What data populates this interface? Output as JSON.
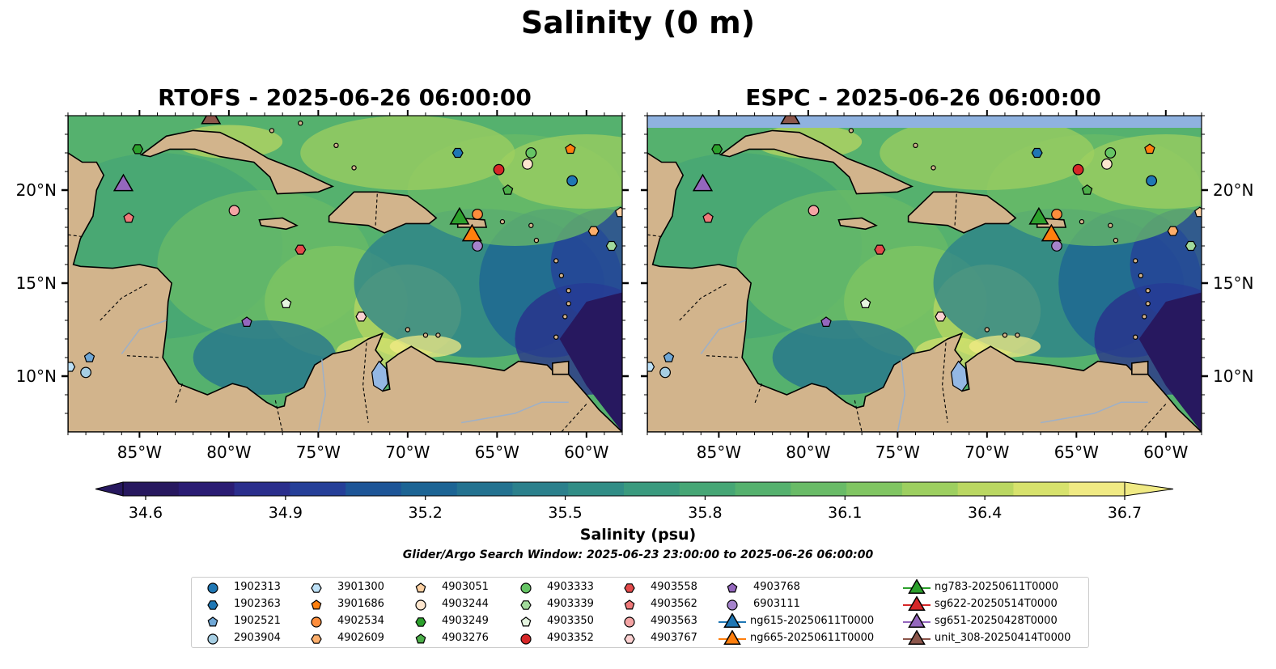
{
  "suptitle": "Salinity (0 m)",
  "panels": [
    {
      "title": "RTOFS - 2025-06-26 06:00:00"
    },
    {
      "title": "ESPC - 2025-06-26 06:00:00"
    }
  ],
  "colorbar": {
    "label": "Salinity (psu)",
    "ticks": [
      "34.6",
      "34.9",
      "35.2",
      "35.5",
      "35.8",
      "36.1",
      "36.4",
      "36.7"
    ],
    "colors": [
      "#27185f",
      "#2a1c73",
      "#2a2e8c",
      "#253f98",
      "#1d5597",
      "#1c6494",
      "#237290",
      "#2b808c",
      "#318d86",
      "#3a9a7e",
      "#46a675",
      "#55b16e",
      "#69bb67",
      "#80c562",
      "#9dcf60",
      "#bad762",
      "#d7e26d",
      "#f0ea84"
    ]
  },
  "search_window": "Glider/Argo Search Window: 2025-06-23 23:00:00 to 2025-06-26 06:00:00",
  "colors": {
    "land": "#d2b48c",
    "lake": "#94b8e4",
    "river": "#9db0c8",
    "deep_ocean": "#27185f"
  },
  "chart_data": {
    "type": "scatter",
    "xlabel": "",
    "ylabel": "",
    "xlim": [
      -89,
      -58
    ],
    "ylim": [
      7,
      24
    ],
    "xticks": [
      {
        "value": -85,
        "label": "85°W"
      },
      {
        "value": -80,
        "label": "80°W"
      },
      {
        "value": -75,
        "label": "75°W"
      },
      {
        "value": -70,
        "label": "70°W"
      },
      {
        "value": -65,
        "label": "65°W"
      },
      {
        "value": -60,
        "label": "60°W"
      }
    ],
    "yticks": [
      {
        "value": 10,
        "label": "10°N"
      },
      {
        "value": 15,
        "label": "15°N"
      },
      {
        "value": 20,
        "label": "20°N"
      }
    ],
    "argo": [
      {
        "name": "1902313",
        "marker": "circle",
        "color": "#1f77b4",
        "lon": -60.8,
        "lat": 20.5
      },
      {
        "name": "1902363",
        "marker": "hexagon",
        "color": "#1f77b4",
        "lon": -67.2,
        "lat": 22.0
      },
      {
        "name": "1902521",
        "marker": "pentagon",
        "color": "#6fa7d6",
        "lon": -87.8,
        "lat": 11.0
      },
      {
        "name": "2903904",
        "marker": "circle",
        "color": "#a6cee3",
        "lon": -88.0,
        "lat": 10.2
      },
      {
        "name": "3901300",
        "marker": "hexagon",
        "color": "#bde0f6",
        "lon": -88.9,
        "lat": 10.5
      },
      {
        "name": "3901686",
        "marker": "pentagon",
        "color": "#ff7f0e",
        "lon": -60.9,
        "lat": 22.2
      },
      {
        "name": "4902534",
        "marker": "circle",
        "color": "#fd8d3c",
        "lon": -66.1,
        "lat": 18.7
      },
      {
        "name": "4902609",
        "marker": "hexagon",
        "color": "#fdae6b",
        "lon": -59.6,
        "lat": 17.8
      },
      {
        "name": "4903051",
        "marker": "pentagon",
        "color": "#fdd0a2",
        "lon": -58.1,
        "lat": 18.8
      },
      {
        "name": "4903244",
        "marker": "circle",
        "color": "#fee6ce",
        "lon": -63.3,
        "lat": 21.4
      },
      {
        "name": "4903249",
        "marker": "hexagon",
        "color": "#2ca02c",
        "lon": -85.1,
        "lat": 22.2
      },
      {
        "name": "4903276",
        "marker": "pentagon",
        "color": "#4daf4a",
        "lon": -64.4,
        "lat": 20.0
      },
      {
        "name": "4903333",
        "marker": "circle",
        "color": "#66c565",
        "lon": -63.1,
        "lat": 22.0
      },
      {
        "name": "4903339",
        "marker": "hexagon",
        "color": "#a1d99b",
        "lon": -58.6,
        "lat": 17.0
      },
      {
        "name": "4903350",
        "marker": "pentagon",
        "color": "#e5f5e0",
        "lon": -76.8,
        "lat": 13.9
      },
      {
        "name": "4903352",
        "marker": "circle",
        "color": "#d62728",
        "lon": -64.9,
        "lat": 21.1
      },
      {
        "name": "4903558",
        "marker": "hexagon",
        "color": "#e34a4a",
        "lon": -76.0,
        "lat": 16.8
      },
      {
        "name": "4903562",
        "marker": "pentagon",
        "color": "#f07a7a",
        "lon": -85.6,
        "lat": 18.5
      },
      {
        "name": "4903563",
        "marker": "circle",
        "color": "#f4a4a4",
        "lon": -79.7,
        "lat": 18.9
      },
      {
        "name": "4903767",
        "marker": "hexagon",
        "color": "#fbd0d0",
        "lon": -72.6,
        "lat": 13.2
      },
      {
        "name": "4903768",
        "marker": "pentagon",
        "color": "#9467bd",
        "lon": -79.0,
        "lat": 12.9
      },
      {
        "name": "6903111",
        "marker": "circle",
        "color": "#a583cc",
        "lon": -66.1,
        "lat": 17.0
      }
    ],
    "gliders": [
      {
        "name": "ng615-20250611T0000",
        "color": "#1f77b4",
        "lon": null,
        "lat": null
      },
      {
        "name": "ng665-20250611T0000",
        "color": "#ff7f0e",
        "lon": -66.4,
        "lat": 17.7
      },
      {
        "name": "ng783-20250611T0000",
        "color": "#2ca02c",
        "lon": -67.1,
        "lat": 18.6
      },
      {
        "name": "sg622-20250514T0000",
        "color": "#d62728",
        "lon": null,
        "lat": null
      },
      {
        "name": "sg651-20250428T0000",
        "color": "#9467bd",
        "lon": -85.9,
        "lat": 20.4
      },
      {
        "name": "unit_308-20250414T0000",
        "color": "#8c564b",
        "lon": -81.0,
        "lat": 24.0
      }
    ]
  }
}
